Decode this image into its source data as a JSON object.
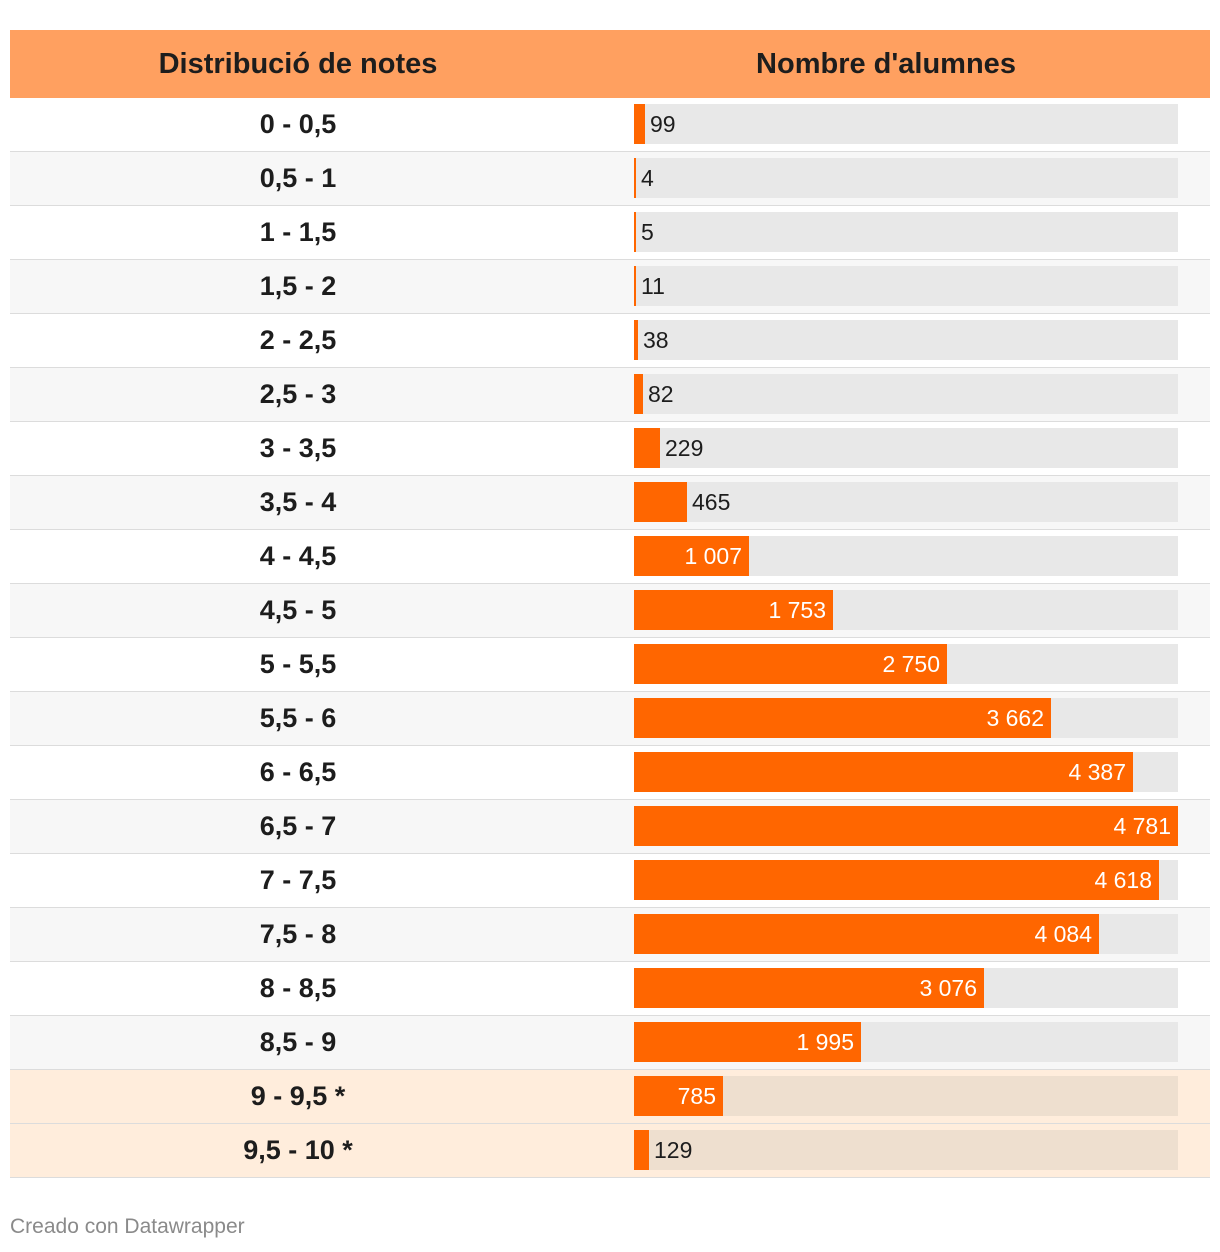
{
  "header": {
    "col1": "Distribució de notes",
    "col2": "Nombre d'alumnes"
  },
  "colors": {
    "bar": "#ff6600",
    "header_bg": "#ffa060",
    "track": "#e8e8e8",
    "highlight_bg": "#ffeddc"
  },
  "chart_data": {
    "type": "bar",
    "orientation": "horizontal",
    "xlabel": "Nombre d'alumnes",
    "ylabel": "Distribució de notes",
    "max": 4781,
    "categories": [
      "0 - 0,5",
      "0,5 - 1",
      "1 - 1,5",
      "1,5 - 2",
      "2 - 2,5",
      "2,5 - 3",
      "3 - 3,5",
      "3,5 - 4",
      "4 - 4,5",
      "4,5 - 5",
      "5 - 5,5",
      "5,5 - 6",
      "6 - 6,5",
      "6,5 - 7",
      "7 - 7,5",
      "7,5 - 8",
      "8 - 8,5",
      "8,5 - 9",
      "9 - 9,5 *",
      "9,5 - 10 *"
    ],
    "values": [
      99,
      4,
      5,
      11,
      38,
      82,
      229,
      465,
      1007,
      1753,
      2750,
      3662,
      4387,
      4781,
      4618,
      4084,
      3076,
      1995,
      785,
      129
    ],
    "value_labels": [
      "99",
      "4",
      "5",
      "11",
      "38",
      "82",
      "229",
      "465",
      "1 007",
      "1 753",
      "2 750",
      "3 662",
      "4 387",
      "4 781",
      "4 618",
      "4 084",
      "3 076",
      "1 995",
      "785",
      "129"
    ],
    "highlighted": [
      false,
      false,
      false,
      false,
      false,
      false,
      false,
      false,
      false,
      false,
      false,
      false,
      false,
      false,
      false,
      false,
      false,
      false,
      true,
      true
    ]
  },
  "footer": "Creado con Datawrapper"
}
